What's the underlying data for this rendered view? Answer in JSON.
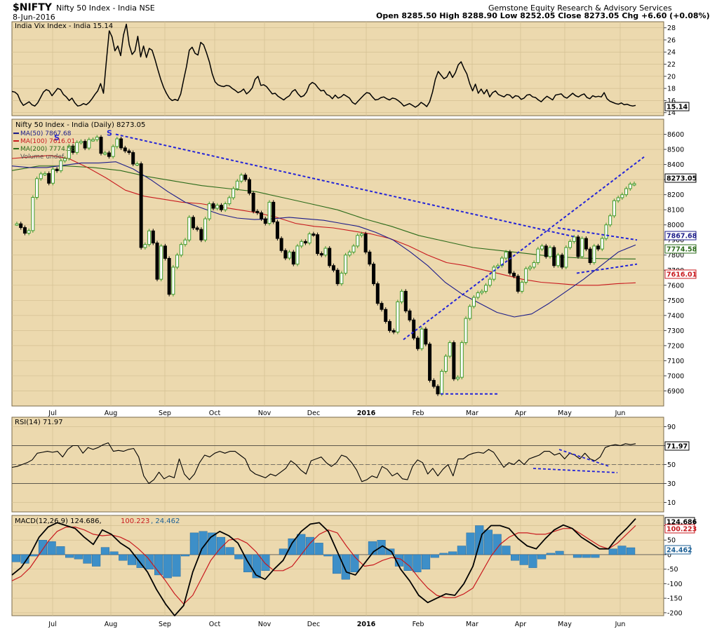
{
  "header": {
    "symbol": "$NIFTY",
    "name": "Nifty 50 Index - India  NSE",
    "date": "8-Jun-2016",
    "publisher": "Gemstone Equity Research & Advisory Services",
    "ohlc": "Open 8285.50  High 8288.90  Low 8252.05  Close 8273.05  Chg +6.60 (+0.08%)"
  },
  "chart_data": [
    {
      "type": "line",
      "title": "India Vix Index - India 15.14",
      "last_value": "15.14",
      "y_ticks": [
        "28",
        "26",
        "24",
        "22",
        "20",
        "18",
        "16",
        "14"
      ],
      "ylim": [
        13.5,
        29
      ],
      "series": [
        {
          "name": "India Vix Index - India",
          "values": [
            17.5,
            17.4,
            17.0,
            15.9,
            15.2,
            15.5,
            15.8,
            15.3,
            15.1,
            15.6,
            16.5,
            17.4,
            17.8,
            17.6,
            16.8,
            17.4,
            18.0,
            17.8,
            17.0,
            16.6,
            16.0,
            16.4,
            15.6,
            15.1,
            15.2,
            15.5,
            15.3,
            15.7,
            16.3,
            17.0,
            17.6,
            18.8,
            17.2,
            22.5,
            27.5,
            26.5,
            24.2,
            25.0,
            23.4,
            26.8,
            28.6,
            25.2,
            23.6,
            24.2,
            26.6,
            23.2,
            25.0,
            23.1,
            24.6,
            24.3,
            22.8,
            21.1,
            19.5,
            18.2,
            17.2,
            16.4,
            16.0,
            16.2,
            16.0,
            17.1,
            19.4,
            21.6,
            24.3,
            24.8,
            23.8,
            23.5,
            25.6,
            25.2,
            23.9,
            22.4,
            20.4,
            19.1,
            18.6,
            18.4,
            18.3,
            18.5,
            18.4,
            18.0,
            17.7,
            17.3,
            17.5,
            17.9,
            17.1,
            17.5,
            18.1,
            19.5,
            20.0,
            18.5,
            18.6,
            18.3,
            17.7,
            17.1,
            17.2,
            16.7,
            16.4,
            16.1,
            16.5,
            16.8,
            17.5,
            17.8,
            17.1,
            16.6,
            16.8,
            17.4,
            18.6,
            19.0,
            18.7,
            18.1,
            17.6,
            17.7,
            17.0,
            16.8,
            16.3,
            16.9,
            16.4,
            16.6,
            17.0,
            16.7,
            16.4,
            15.7,
            15.4,
            15.9,
            16.4,
            16.9,
            17.3,
            17.2,
            16.6,
            16.1,
            16.2,
            16.5,
            16.6,
            16.3,
            16.1,
            16.4,
            16.3,
            16.0,
            15.6,
            15.1,
            15.3,
            15.5,
            15.2,
            14.9,
            15.2,
            15.7,
            15.4,
            15.0,
            15.8,
            17.4,
            19.5,
            20.8,
            20.2,
            19.6,
            19.9,
            20.8,
            19.8,
            20.6,
            21.9,
            22.4,
            21.3,
            20.4,
            18.8,
            17.6,
            18.7,
            17.2,
            17.9,
            17.1,
            17.8,
            16.6,
            17.3,
            17.6,
            17.0,
            16.8,
            16.6,
            17.0,
            16.9,
            16.4,
            16.8,
            16.7,
            16.2,
            16.4,
            16.9,
            17.0,
            16.6,
            16.5,
            16.1,
            15.8,
            16.3,
            16.7,
            16.4,
            16.1,
            16.9,
            17.0,
            17.1,
            16.6,
            16.4,
            16.8,
            17.2,
            16.8,
            16.6,
            16.9,
            17.1,
            16.5,
            16.3,
            16.8,
            16.6,
            16.7,
            16.6,
            17.3,
            16.3,
            15.9,
            15.7,
            15.5,
            15.4,
            15.6,
            15.3,
            15.4,
            15.2,
            15.1,
            15.2
          ]
        }
      ]
    },
    {
      "type": "line",
      "title": "Nifty 50 Index - India (Daily) 8273.05",
      "x_labels": [
        "Jul",
        "Aug",
        "Sep",
        "Oct",
        "Nov",
        "Dec",
        "2016",
        "Feb",
        "Mar",
        "Apr",
        "May",
        "Jun"
      ],
      "y_ticks": [
        "8600",
        "8500",
        "8400",
        "8300",
        "8200",
        "8100",
        "8000",
        "7900",
        "7800",
        "7700",
        "7600",
        "7500",
        "7400",
        "7300",
        "7200",
        "7100",
        "7000",
        "6900"
      ],
      "ylim": [
        6800,
        8700
      ],
      "last_value": "8273.05",
      "ma_labels": [
        {
          "legend": "MA(50) 7867.68",
          "tag": "7867.68"
        },
        {
          "legend": "MA(100) 7616.01",
          "tag": "7616.01"
        },
        {
          "legend": "MA(200) 7774.58",
          "tag": "7774.58"
        }
      ],
      "volume_label": "Volume undef",
      "pattern_labels": [
        "S",
        "S"
      ],
      "series": [
        {
          "name": "Nifty 50 Index - India",
          "values": [
            8007,
            7982,
            7945,
            7962,
            8182,
            8306,
            8338,
            8340,
            8276,
            8369,
            8359,
            8425,
            8440,
            8522,
            8480,
            8546,
            8553,
            8509,
            8565,
            8565,
            8581,
            8474,
            8477,
            8453,
            8519,
            8570,
            8510,
            8490,
            8479,
            8403,
            8405,
            7850,
            7870,
            7960,
            7880,
            7640,
            7860,
            7778,
            7540,
            7720,
            7800,
            7870,
            7900,
            8050,
            7980,
            7970,
            7900,
            8040,
            8140,
            8110,
            8130,
            8100,
            8140,
            8180,
            8240,
            8290,
            8330,
            8300,
            8210,
            8090,
            8080,
            8040,
            8010,
            8150,
            8020,
            7910,
            7830,
            7780,
            7820,
            7740,
            7860,
            7890,
            7880,
            7940,
            7935,
            7810,
            7800,
            7845,
            7730,
            7700,
            7610,
            7680,
            7800,
            7820,
            7860,
            7930,
            7940,
            7820,
            7740,
            7610,
            7480,
            7440,
            7360,
            7300,
            7290,
            7490,
            7560,
            7430,
            7370,
            7250,
            7180,
            7310,
            7210,
            6970,
            6930,
            6880,
            7030,
            7130,
            7220,
            6980,
            6990,
            7220,
            7380,
            7460,
            7520,
            7550,
            7560,
            7600,
            7640,
            7720,
            7730,
            7780,
            7820,
            7680,
            7660,
            7560,
            7620,
            7710,
            7720,
            7750,
            7840,
            7860,
            7790,
            7850,
            7730,
            7800,
            7720,
            7850,
            7890,
            7920,
            7790,
            7910,
            7840,
            7750,
            7860,
            7840,
            7910,
            8000,
            8060,
            8160,
            8180,
            8200,
            8240,
            8270,
            8273
          ]
        },
        {
          "name": "MA(50)",
          "values": [
            8390,
            8380,
            8380,
            8395,
            8410,
            8410,
            8418,
            8370,
            8300,
            8220,
            8150,
            8110,
            8070,
            8045,
            8035,
            8040,
            8050,
            8040,
            8030,
            8010,
            7990,
            7950,
            7900,
            7820,
            7730,
            7620,
            7540,
            7480,
            7420,
            7390,
            7410,
            7480,
            7560,
            7640,
            7730,
            7820,
            7867
          ]
        },
        {
          "name": "MA(100)",
          "values": [
            8440,
            8450,
            8460,
            8440,
            8380,
            8310,
            8230,
            8190,
            8170,
            8150,
            8140,
            8120,
            8100,
            8080,
            8050,
            8010,
            7990,
            7980,
            7960,
            7940,
            7910,
            7860,
            7800,
            7750,
            7730,
            7700,
            7670,
            7640,
            7620,
            7610,
            7600,
            7600,
            7610,
            7616
          ]
        },
        {
          "name": "MA(200)",
          "values": [
            8360,
            8390,
            8390,
            8380,
            8360,
            8320,
            8290,
            8260,
            8240,
            8220,
            8180,
            8140,
            8100,
            8040,
            7990,
            7930,
            7890,
            7850,
            7830,
            7810,
            7790,
            7780,
            7775,
            7774
          ]
        }
      ]
    },
    {
      "type": "line",
      "title": "RSI(14) 71.97",
      "last_value": "71.97",
      "y_ticks": [
        "90",
        "70",
        "50",
        "30",
        "10"
      ],
      "ylim": [
        0,
        100
      ],
      "series": [
        {
          "name": "RSI(14)",
          "values": [
            47,
            48,
            50,
            52,
            55,
            62,
            63,
            64,
            63,
            64,
            58,
            66,
            70,
            70,
            62,
            68,
            66,
            68,
            71,
            73,
            64,
            65,
            64,
            66,
            67,
            58,
            38,
            30,
            34,
            42,
            35,
            38,
            36,
            56,
            40,
            34,
            40,
            52,
            60,
            58,
            62,
            64,
            62,
            64,
            64,
            60,
            56,
            44,
            40,
            38,
            36,
            40,
            38,
            42,
            46,
            54,
            50,
            44,
            40,
            54,
            56,
            58,
            52,
            48,
            52,
            60,
            58,
            52,
            44,
            32,
            34,
            38,
            36,
            48,
            45,
            38,
            41,
            35,
            34,
            48,
            55,
            52,
            40,
            46,
            38,
            45,
            50,
            38,
            56,
            56,
            60,
            62,
            63,
            62,
            66,
            63,
            55,
            47,
            52,
            50,
            55,
            50,
            56,
            58,
            60,
            64,
            64,
            60,
            62,
            56,
            62,
            60,
            56,
            62,
            56,
            54,
            58,
            68,
            70,
            71,
            70,
            72,
            71,
            72
          ]
        }
      ]
    },
    {
      "type": "line",
      "title": "MACD(12,26,9) 124.686, 100.223, 24.462",
      "y_ticks": [
        "100",
        "50",
        "0",
        "-50",
        "-100",
        "-150",
        "-200"
      ],
      "ylim": [
        -210,
        135
      ],
      "value_tags": [
        "124.686",
        "100.223",
        "24.462"
      ],
      "series": [
        {
          "name": "MACD(12,26,9)",
          "values": [
            -70,
            -45,
            0,
            60,
            95,
            110,
            100,
            90,
            60,
            35,
            85,
            70,
            40,
            20,
            -20,
            -60,
            -120,
            -170,
            -210,
            -175,
            -60,
            20,
            60,
            80,
            65,
            40,
            -20,
            -70,
            -85,
            -50,
            -20,
            40,
            80,
            105,
            110,
            80,
            10,
            -60,
            -70,
            -30,
            10,
            30,
            10,
            -50,
            -90,
            -140,
            -165,
            -150,
            -135,
            -140,
            -100,
            -40,
            70,
            100,
            100,
            90,
            55,
            30,
            20,
            55,
            85,
            102,
            90,
            60,
            40,
            20,
            20,
            60,
            90,
            124
          ]
        },
        {
          "name": "Signal",
          "values": [
            -90,
            -75,
            -45,
            0,
            45,
            80,
            95,
            95,
            85,
            70,
            65,
            68,
            60,
            45,
            20,
            -10,
            -50,
            -90,
            -135,
            -170,
            -140,
            -80,
            -20,
            20,
            50,
            55,
            40,
            10,
            -30,
            -55,
            -55,
            -40,
            0,
            40,
            70,
            85,
            75,
            30,
            -10,
            -40,
            -35,
            -20,
            -10,
            -15,
            -40,
            -80,
            -115,
            -140,
            -148,
            -148,
            -135,
            -115,
            -60,
            -5,
            35,
            60,
            75,
            75,
            70,
            70,
            80,
            90,
            90,
            70,
            50,
            30,
            20,
            40,
            70,
            100
          ]
        },
        {
          "name": "Histogram",
          "values": [
            -25,
            -30,
            -5,
            50,
            45,
            28,
            -10,
            -15,
            -30,
            -40,
            25,
            10,
            -20,
            -35,
            -45,
            -50,
            -70,
            -80,
            -75,
            -5,
            75,
            80,
            75,
            60,
            25,
            -15,
            -60,
            -80,
            -55,
            0,
            20,
            55,
            70,
            60,
            40,
            -5,
            -65,
            -85,
            -60,
            0,
            45,
            50,
            20,
            -40,
            -55,
            -60,
            -50,
            -10,
            5,
            10,
            30,
            75,
            100,
            85,
            70,
            30,
            -20,
            -35,
            -45,
            -15,
            5,
            12,
            0,
            -10,
            -10,
            -10,
            0,
            20,
            30,
            24
          ]
        }
      ]
    }
  ],
  "colors": {
    "plot_bg": "#ecd9ae",
    "price_line": "#2a2a2a",
    "ma50": "#1c1c8a",
    "ma100": "#c8191e",
    "ma200": "#2b6b1a",
    "trendline": "#2424d8",
    "bull_candle": "#3e9a2b",
    "bear_candle": "#000000",
    "histogram": "#3d8fc8"
  }
}
